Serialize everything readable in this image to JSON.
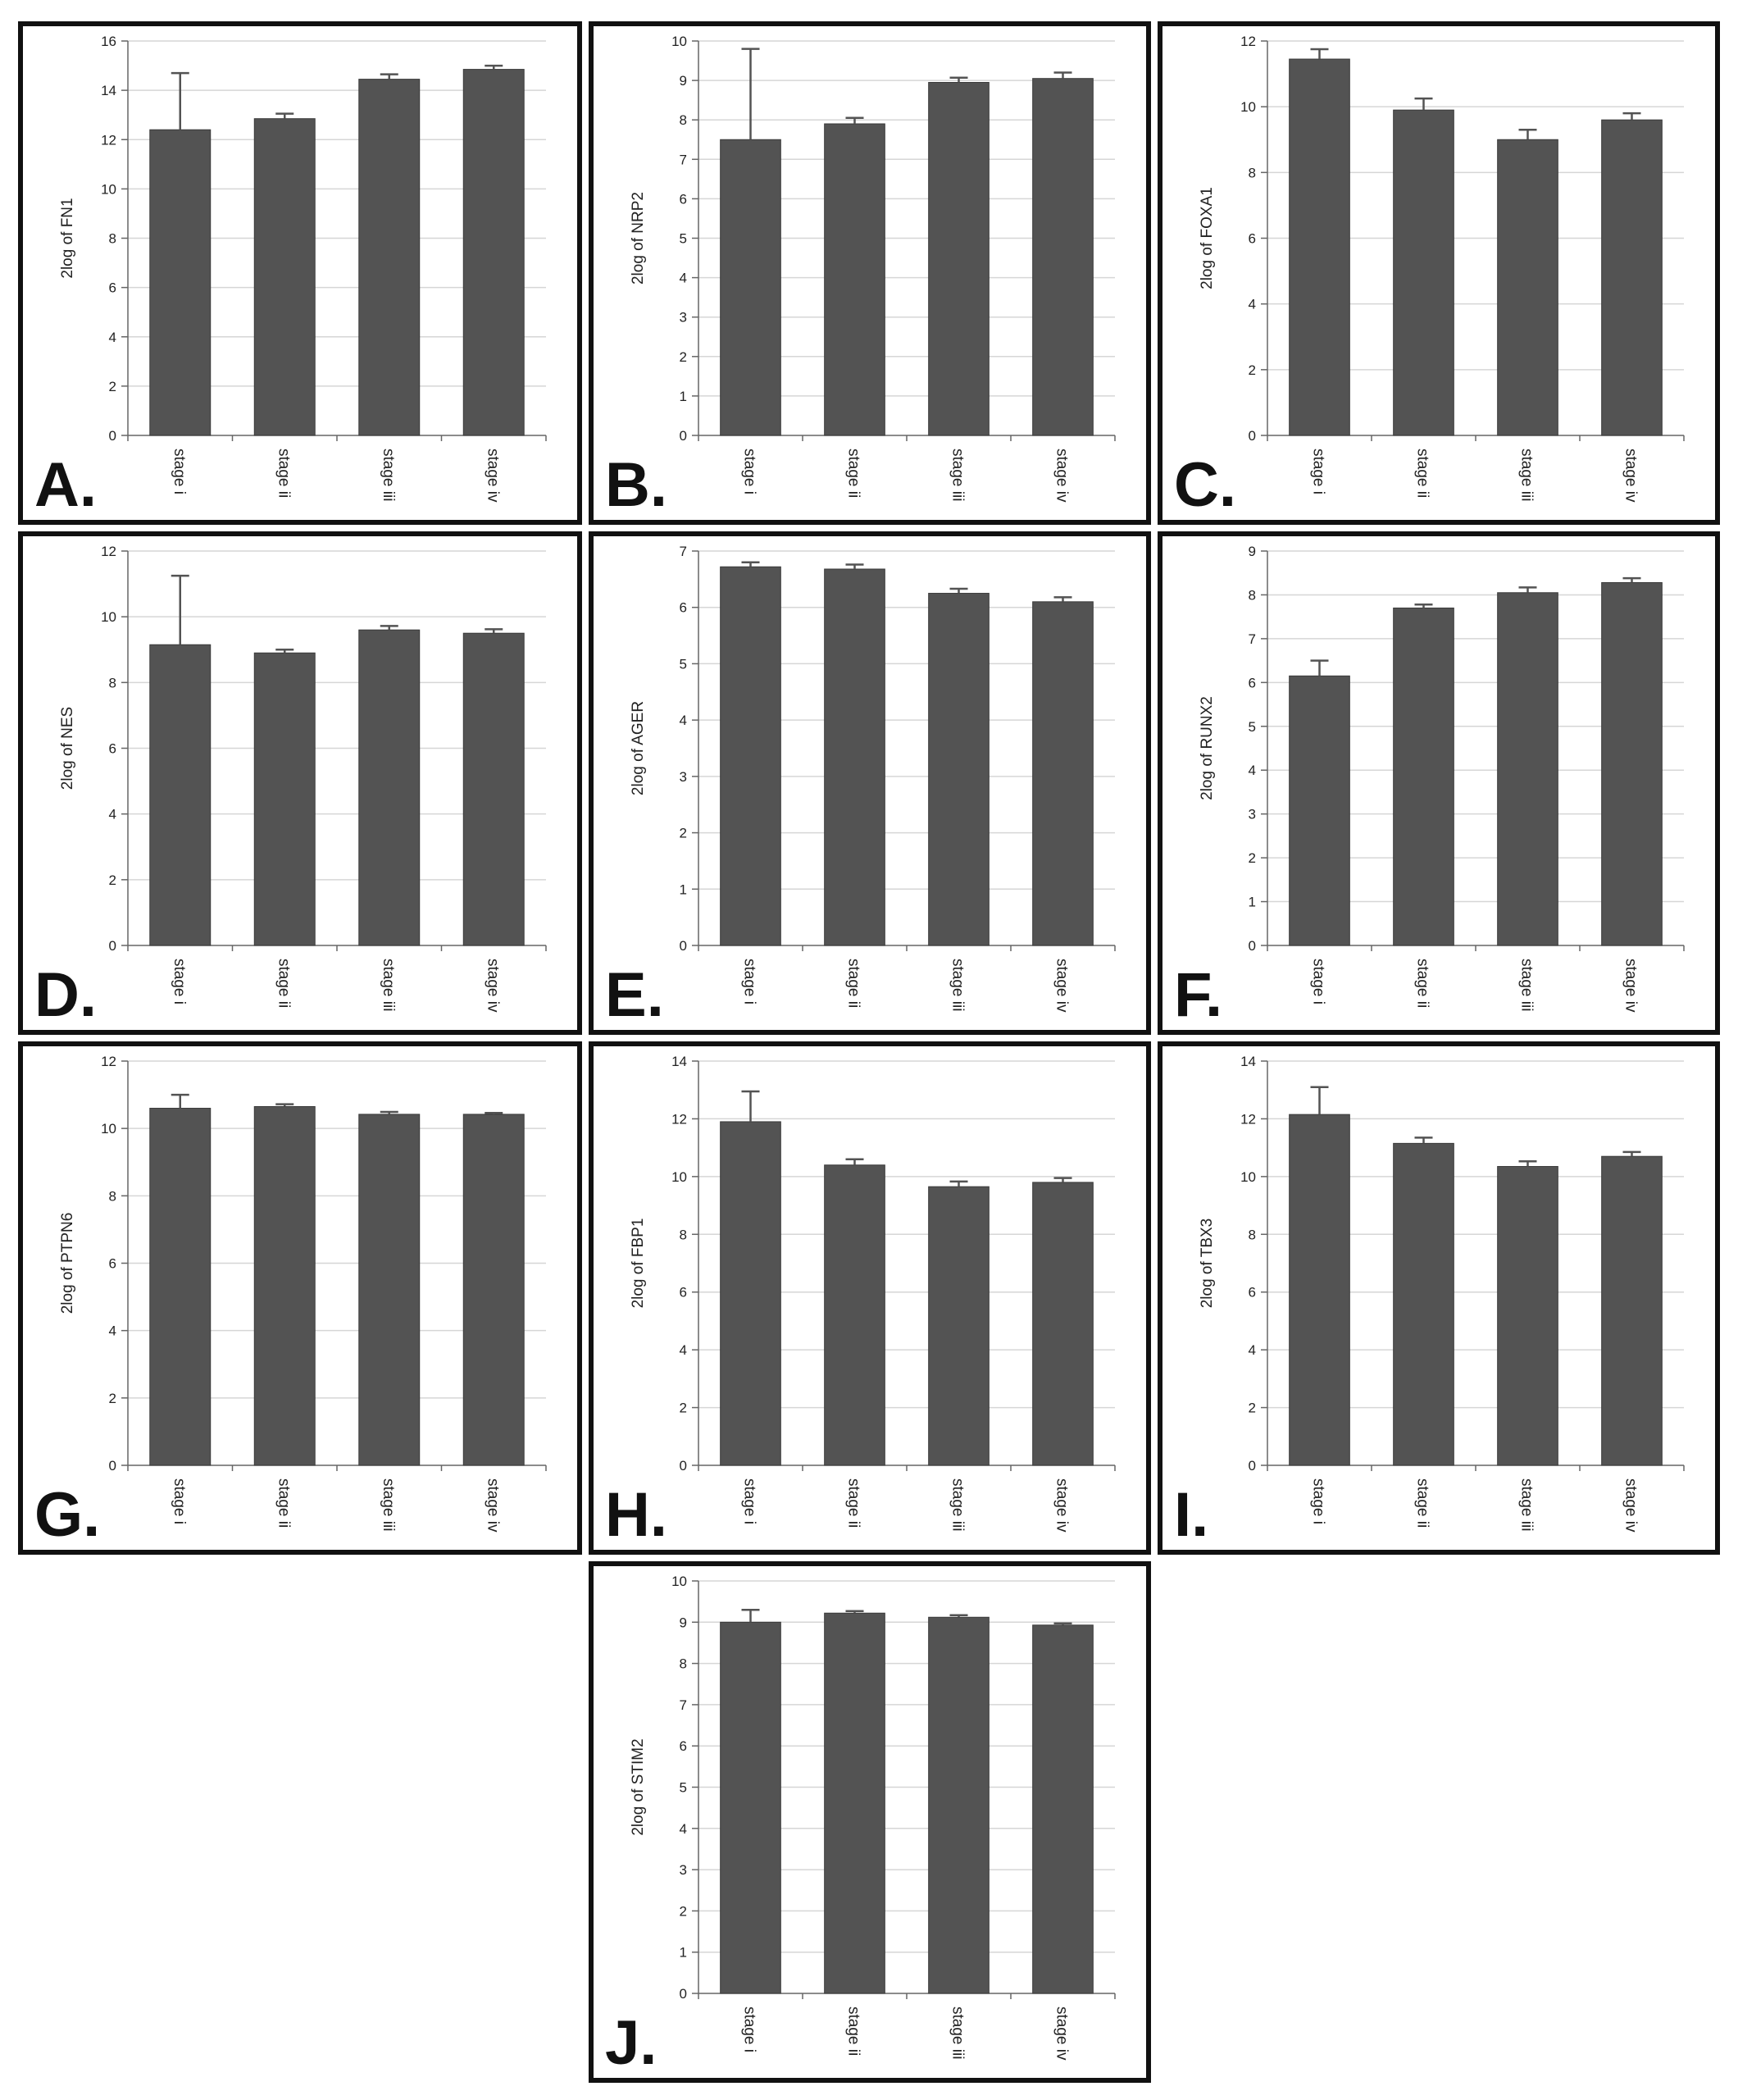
{
  "categories": [
    "stage i",
    "stage ii",
    "stage iii",
    "stage iv"
  ],
  "colors": {
    "bar": "#535353",
    "bar_edge": "#3a3a3a",
    "grid": "#d6d6d6",
    "axis": "#666666",
    "text": "#222222",
    "border": "#111111"
  },
  "chart_data": [
    {
      "panel": "A.",
      "type": "bar",
      "ylabel": "2log of FN1",
      "ylim": [
        0,
        16
      ],
      "yticks": [
        0,
        2,
        4,
        6,
        8,
        10,
        12,
        14,
        16
      ],
      "categories": [
        "stage i",
        "stage ii",
        "stage iii",
        "stage iv"
      ],
      "values": [
        12.4,
        12.85,
        14.45,
        14.85
      ],
      "errors": [
        2.3,
        0.2,
        0.2,
        0.15
      ]
    },
    {
      "panel": "B.",
      "type": "bar",
      "ylabel": "2log of NRP2",
      "ylim": [
        0,
        10
      ],
      "yticks": [
        0,
        1,
        2,
        3,
        4,
        5,
        6,
        7,
        8,
        9,
        10
      ],
      "categories": [
        "stage i",
        "stage ii",
        "stage iii",
        "stage iv"
      ],
      "values": [
        7.5,
        7.9,
        8.95,
        9.05
      ],
      "errors": [
        2.3,
        0.15,
        0.12,
        0.15
      ]
    },
    {
      "panel": "C.",
      "type": "bar",
      "ylabel": "2log of FOXA1",
      "ylim": [
        0,
        12
      ],
      "yticks": [
        0,
        2,
        4,
        6,
        8,
        10,
        12
      ],
      "categories": [
        "stage i",
        "stage ii",
        "stage iii",
        "stage iv"
      ],
      "values": [
        11.45,
        9.9,
        9.0,
        9.6
      ],
      "errors": [
        0.3,
        0.35,
        0.3,
        0.2
      ]
    },
    {
      "panel": "D.",
      "type": "bar",
      "ylabel": "2log of NES",
      "ylim": [
        0,
        12
      ],
      "yticks": [
        0,
        2,
        4,
        6,
        8,
        10,
        12
      ],
      "categories": [
        "stage i",
        "stage ii",
        "stage iii",
        "stage iv"
      ],
      "values": [
        9.15,
        8.9,
        9.6,
        9.5
      ],
      "errors": [
        2.1,
        0.1,
        0.12,
        0.12
      ]
    },
    {
      "panel": "E.",
      "type": "bar",
      "ylabel": "2log of AGER",
      "ylim": [
        0,
        7
      ],
      "yticks": [
        0,
        1,
        2,
        3,
        4,
        5,
        6,
        7
      ],
      "categories": [
        "stage i",
        "stage ii",
        "stage iii",
        "stage iv"
      ],
      "values": [
        6.72,
        6.68,
        6.25,
        6.1
      ],
      "errors": [
        0.08,
        0.08,
        0.08,
        0.08
      ]
    },
    {
      "panel": "F.",
      "type": "bar",
      "ylabel": "2log of RUNX2",
      "ylim": [
        0,
        9
      ],
      "yticks": [
        0,
        1,
        2,
        3,
        4,
        5,
        6,
        7,
        8,
        9
      ],
      "categories": [
        "stage i",
        "stage ii",
        "stage iii",
        "stage iv"
      ],
      "values": [
        6.15,
        7.7,
        8.05,
        8.28
      ],
      "errors": [
        0.35,
        0.08,
        0.12,
        0.1
      ]
    },
    {
      "panel": "G.",
      "type": "bar",
      "ylabel": "2log of PTPN6",
      "ylim": [
        0,
        12
      ],
      "yticks": [
        0,
        2,
        4,
        6,
        8,
        10,
        12
      ],
      "categories": [
        "stage i",
        "stage ii",
        "stage iii",
        "stage iv"
      ],
      "values": [
        10.6,
        10.65,
        10.42,
        10.42
      ],
      "errors": [
        0.4,
        0.07,
        0.07,
        0.04
      ]
    },
    {
      "panel": "H.",
      "type": "bar",
      "ylabel": "2log of FBP1",
      "ylim": [
        0,
        14
      ],
      "yticks": [
        0,
        2,
        4,
        6,
        8,
        10,
        12,
        14
      ],
      "categories": [
        "stage i",
        "stage ii",
        "stage iii",
        "stage iv"
      ],
      "values": [
        11.9,
        10.4,
        9.65,
        9.8
      ],
      "errors": [
        1.05,
        0.2,
        0.18,
        0.15
      ]
    },
    {
      "panel": "I.",
      "type": "bar",
      "ylabel": "2log of TBX3",
      "ylim": [
        0,
        14
      ],
      "yticks": [
        0,
        2,
        4,
        6,
        8,
        10,
        12,
        14
      ],
      "categories": [
        "stage i",
        "stage ii",
        "stage iii",
        "stage iv"
      ],
      "values": [
        12.15,
        11.15,
        10.35,
        10.7
      ],
      "errors": [
        0.95,
        0.2,
        0.18,
        0.15
      ]
    },
    {
      "panel": "J.",
      "type": "bar",
      "ylabel": "2log of STIM2",
      "ylim": [
        0,
        10
      ],
      "yticks": [
        0,
        1,
        2,
        3,
        4,
        5,
        6,
        7,
        8,
        9,
        10
      ],
      "categories": [
        "stage i",
        "stage ii",
        "stage iii",
        "stage iv"
      ],
      "values": [
        9.0,
        9.22,
        9.12,
        8.93
      ],
      "errors": [
        0.3,
        0.05,
        0.05,
        0.04
      ]
    }
  ]
}
